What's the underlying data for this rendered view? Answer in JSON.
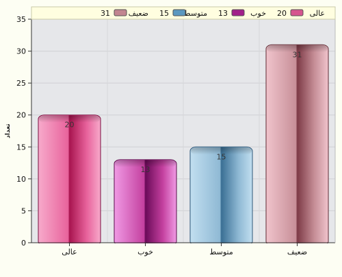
{
  "chart_data": {
    "type": "bar",
    "categories": [
      "عالی",
      "خوب",
      "متوسط",
      "ضعیف"
    ],
    "values": [
      20,
      13,
      15,
      31
    ],
    "data_labels": [
      "20",
      "13",
      "15",
      "31"
    ],
    "ylabel": "تعداد",
    "ylim": [
      0,
      35
    ],
    "y_ticks": [
      0,
      5,
      10,
      15,
      20,
      25,
      30,
      35
    ],
    "grid": true,
    "legend": {
      "position": "top",
      "entries": [
        {
          "value": "20",
          "label": "عالی",
          "color": "#d6558f"
        },
        {
          "value": "13",
          "label": "خوب",
          "color": "#a2208a"
        },
        {
          "value": "15",
          "label": "متوسط",
          "color": "#5b98c0"
        },
        {
          "value": "31",
          "label": "ضعیف",
          "color": "#c28590"
        }
      ]
    },
    "colors": [
      {
        "light": "#f7aacb",
        "mid": "#e8639c",
        "dark": "#a8144f",
        "edge": "#7a1040"
      },
      {
        "light": "#f09ae4",
        "mid": "#c4409f",
        "dark": "#6a0a58",
        "edge": "#5a0a4a"
      },
      {
        "light": "#c2dff0",
        "mid": "#8fb9d4",
        "dark": "#3a6f94",
        "edge": "#2c5678"
      },
      {
        "light": "#f0c4cc",
        "mid": "#c78f98",
        "dark": "#7d3a46",
        "edge": "#5e2a33"
      }
    ]
  }
}
